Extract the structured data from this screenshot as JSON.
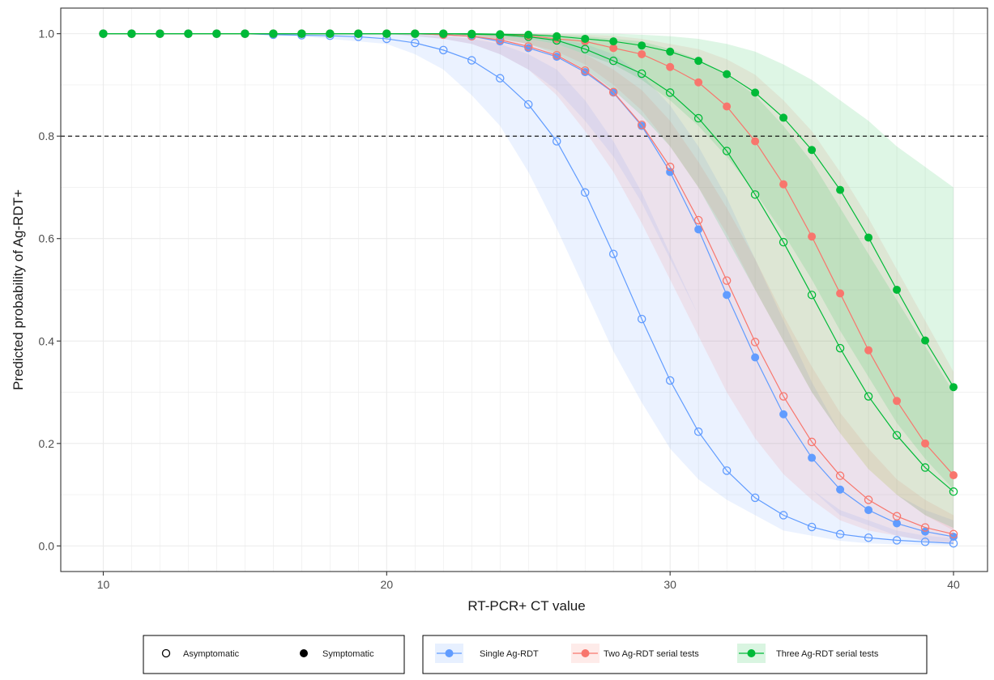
{
  "chart_data": {
    "type": "line",
    "title": "",
    "xlabel": "RT-PCR+ CT value",
    "ylabel": "Predicted probability of Ag-RDT+",
    "xlim": [
      8.5,
      41.2
    ],
    "ylim": [
      -0.05,
      1.05
    ],
    "x_ticks": [
      10,
      20,
      30,
      40
    ],
    "y_ticks": [
      0.0,
      0.2,
      0.4,
      0.6,
      0.8,
      1.0
    ],
    "x_tick_labels": [
      "10",
      "20",
      "30",
      "40"
    ],
    "y_tick_labels": [
      "0.0",
      "0.2",
      "0.4",
      "0.6",
      "0.8",
      "1.0"
    ],
    "grid": true,
    "reference_line": {
      "y": 0.8,
      "style": "dashed"
    },
    "x": [
      10,
      11,
      12,
      13,
      14,
      15,
      16,
      17,
      18,
      19,
      20,
      21,
      22,
      23,
      24,
      25,
      26,
      27,
      28,
      29,
      30,
      31,
      32,
      33,
      34,
      35,
      36,
      37,
      38,
      39,
      40
    ],
    "series": [
      {
        "name": "Single Ag-RDT",
        "color": "#619CFF",
        "group": "Asymptomatic",
        "values": [
          1.0,
          1.0,
          1.0,
          1.0,
          1.0,
          1.0,
          0.998,
          0.997,
          0.996,
          0.994,
          0.99,
          0.982,
          0.968,
          0.948,
          0.913,
          0.862,
          0.79,
          0.69,
          0.57,
          0.443,
          0.323,
          0.223,
          0.147,
          0.094,
          0.06,
          0.037,
          0.023,
          0.016,
          0.011,
          0.008,
          0.005
        ],
        "ci_lower": [
          1.0,
          1.0,
          1.0,
          1.0,
          1.0,
          1.0,
          0.998,
          0.995,
          0.99,
          0.985,
          0.98,
          0.96,
          0.93,
          0.88,
          0.82,
          0.73,
          0.62,
          0.5,
          0.38,
          0.28,
          0.19,
          0.13,
          0.09,
          0.06,
          0.03,
          0.02,
          0.01,
          0.005,
          0.003,
          0.002,
          0.001
        ],
        "ci_upper": [
          1.0,
          1.0,
          1.0,
          1.0,
          1.0,
          1.0,
          1.0,
          1.0,
          1.0,
          1.0,
          1.0,
          0.998,
          0.995,
          0.99,
          0.98,
          0.96,
          0.93,
          0.87,
          0.79,
          0.69,
          0.57,
          0.45,
          0.34,
          0.25,
          0.17,
          0.11,
          0.07,
          0.05,
          0.03,
          0.02,
          0.015
        ]
      },
      {
        "name": "Single Ag-RDT",
        "color": "#619CFF",
        "group": "Symptomatic",
        "values": [
          1.0,
          1.0,
          1.0,
          1.0,
          1.0,
          1.0,
          1.0,
          1.0,
          1.0,
          1.0,
          1.0,
          1.0,
          0.998,
          0.995,
          0.985,
          0.972,
          0.955,
          0.925,
          0.885,
          0.82,
          0.73,
          0.618,
          0.49,
          0.368,
          0.257,
          0.172,
          0.11,
          0.07,
          0.044,
          0.028,
          0.018
        ],
        "ci_lower": [
          1.0,
          1.0,
          1.0,
          1.0,
          1.0,
          1.0,
          1.0,
          1.0,
          1.0,
          1.0,
          1.0,
          0.995,
          0.99,
          0.98,
          0.96,
          0.93,
          0.89,
          0.83,
          0.76,
          0.67,
          0.56,
          0.45,
          0.34,
          0.25,
          0.17,
          0.11,
          0.06,
          0.04,
          0.02,
          0.01,
          0.005
        ],
        "ci_upper": [
          1.0,
          1.0,
          1.0,
          1.0,
          1.0,
          1.0,
          1.0,
          1.0,
          1.0,
          1.0,
          1.0,
          1.0,
          1.0,
          1.0,
          0.998,
          0.995,
          0.99,
          0.98,
          0.96,
          0.92,
          0.86,
          0.78,
          0.68,
          0.56,
          0.44,
          0.32,
          0.22,
          0.15,
          0.1,
          0.07,
          0.05
        ]
      },
      {
        "name": "Two Ag-RDT serial tests",
        "color": "#F8766D",
        "group": "Asymptomatic",
        "values": [
          1.0,
          1.0,
          1.0,
          1.0,
          1.0,
          1.0,
          1.0,
          1.0,
          1.0,
          1.0,
          1.0,
          1.0,
          0.998,
          0.995,
          0.988,
          0.975,
          0.958,
          0.928,
          0.886,
          0.822,
          0.74,
          0.636,
          0.518,
          0.398,
          0.292,
          0.203,
          0.137,
          0.09,
          0.058,
          0.036,
          0.023
        ],
        "ci_lower": [
          1.0,
          1.0,
          1.0,
          1.0,
          1.0,
          1.0,
          1.0,
          1.0,
          1.0,
          1.0,
          1.0,
          0.995,
          0.99,
          0.98,
          0.96,
          0.93,
          0.88,
          0.81,
          0.73,
          0.63,
          0.52,
          0.41,
          0.3,
          0.21,
          0.14,
          0.09,
          0.05,
          0.03,
          0.02,
          0.01,
          0.005
        ],
        "ci_upper": [
          1.0,
          1.0,
          1.0,
          1.0,
          1.0,
          1.0,
          1.0,
          1.0,
          1.0,
          1.0,
          1.0,
          1.0,
          1.0,
          0.998,
          0.996,
          0.99,
          0.98,
          0.96,
          0.93,
          0.89,
          0.83,
          0.75,
          0.66,
          0.56,
          0.45,
          0.35,
          0.26,
          0.19,
          0.13,
          0.09,
          0.06
        ]
      },
      {
        "name": "Two Ag-RDT serial tests",
        "color": "#F8766D",
        "group": "Symptomatic",
        "values": [
          1.0,
          1.0,
          1.0,
          1.0,
          1.0,
          1.0,
          1.0,
          1.0,
          1.0,
          1.0,
          1.0,
          1.0,
          1.0,
          0.999,
          0.998,
          0.996,
          0.99,
          0.985,
          0.972,
          0.96,
          0.935,
          0.905,
          0.858,
          0.79,
          0.706,
          0.604,
          0.493,
          0.382,
          0.283,
          0.2,
          0.138
        ],
        "ci_lower": [
          1.0,
          1.0,
          1.0,
          1.0,
          1.0,
          1.0,
          1.0,
          1.0,
          1.0,
          1.0,
          1.0,
          1.0,
          0.998,
          0.995,
          0.99,
          0.98,
          0.965,
          0.94,
          0.9,
          0.85,
          0.78,
          0.7,
          0.61,
          0.5,
          0.4,
          0.3,
          0.22,
          0.15,
          0.1,
          0.06,
          0.03
        ],
        "ci_upper": [
          1.0,
          1.0,
          1.0,
          1.0,
          1.0,
          1.0,
          1.0,
          1.0,
          1.0,
          1.0,
          1.0,
          1.0,
          1.0,
          1.0,
          1.0,
          1.0,
          1.0,
          0.998,
          0.996,
          0.99,
          0.98,
          0.97,
          0.95,
          0.92,
          0.87,
          0.81,
          0.73,
          0.64,
          0.54,
          0.44,
          0.34
        ]
      },
      {
        "name": "Three Ag-RDT serial tests",
        "color": "#00BA38",
        "group": "Asymptomatic",
        "values": [
          1.0,
          1.0,
          1.0,
          1.0,
          1.0,
          1.0,
          1.0,
          1.0,
          1.0,
          1.0,
          1.0,
          1.0,
          1.0,
          0.999,
          0.998,
          0.994,
          0.987,
          0.97,
          0.947,
          0.922,
          0.885,
          0.835,
          0.771,
          0.686,
          0.593,
          0.49,
          0.386,
          0.292,
          0.216,
          0.153,
          0.106
        ],
        "ci_lower": [
          1.0,
          1.0,
          1.0,
          1.0,
          1.0,
          1.0,
          1.0,
          1.0,
          1.0,
          1.0,
          1.0,
          1.0,
          0.998,
          0.995,
          0.99,
          0.98,
          0.96,
          0.93,
          0.89,
          0.84,
          0.78,
          0.7,
          0.6,
          0.5,
          0.4,
          0.3,
          0.22,
          0.15,
          0.1,
          0.06,
          0.035
        ],
        "ci_upper": [
          1.0,
          1.0,
          1.0,
          1.0,
          1.0,
          1.0,
          1.0,
          1.0,
          1.0,
          1.0,
          1.0,
          1.0,
          1.0,
          1.0,
          1.0,
          1.0,
          0.998,
          0.995,
          0.99,
          0.985,
          0.97,
          0.95,
          0.92,
          0.88,
          0.82,
          0.75,
          0.66,
          0.57,
          0.48,
          0.39,
          0.3
        ]
      },
      {
        "name": "Three Ag-RDT serial tests",
        "color": "#00BA38",
        "group": "Symptomatic",
        "values": [
          1.0,
          1.0,
          1.0,
          1.0,
          1.0,
          1.0,
          1.0,
          1.0,
          1.0,
          1.0,
          1.0,
          1.0,
          1.0,
          1.0,
          0.999,
          0.998,
          0.995,
          0.99,
          0.985,
          0.977,
          0.965,
          0.947,
          0.921,
          0.885,
          0.836,
          0.773,
          0.695,
          0.602,
          0.5,
          0.401,
          0.31
        ],
        "ci_lower": [
          1.0,
          1.0,
          1.0,
          1.0,
          1.0,
          1.0,
          1.0,
          1.0,
          1.0,
          1.0,
          1.0,
          1.0,
          1.0,
          0.998,
          0.995,
          0.99,
          0.98,
          0.96,
          0.94,
          0.91,
          0.87,
          0.82,
          0.76,
          0.69,
          0.61,
          0.52,
          0.42,
          0.33,
          0.24,
          0.17,
          0.11
        ],
        "ci_upper": [
          1.0,
          1.0,
          1.0,
          1.0,
          1.0,
          1.0,
          1.0,
          1.0,
          1.0,
          1.0,
          1.0,
          1.0,
          1.0,
          1.0,
          1.0,
          1.0,
          1.0,
          1.0,
          1.0,
          0.998,
          0.995,
          0.99,
          0.98,
          0.965,
          0.94,
          0.91,
          0.87,
          0.83,
          0.78,
          0.74,
          0.7
        ]
      }
    ],
    "legend_shape": {
      "placement": "bottom",
      "items": [
        {
          "label": "Asymptomatic",
          "marker": "open-circle"
        },
        {
          "label": "Symptomatic",
          "marker": "filled-circle"
        }
      ]
    },
    "legend_color": {
      "placement": "bottom",
      "items": [
        {
          "label": "Single Ag-RDT",
          "color": "#619CFF"
        },
        {
          "label": "Two Ag-RDT serial tests",
          "color": "#F8766D"
        },
        {
          "label": "Three Ag-RDT serial tests",
          "color": "#00BA38"
        }
      ]
    }
  }
}
